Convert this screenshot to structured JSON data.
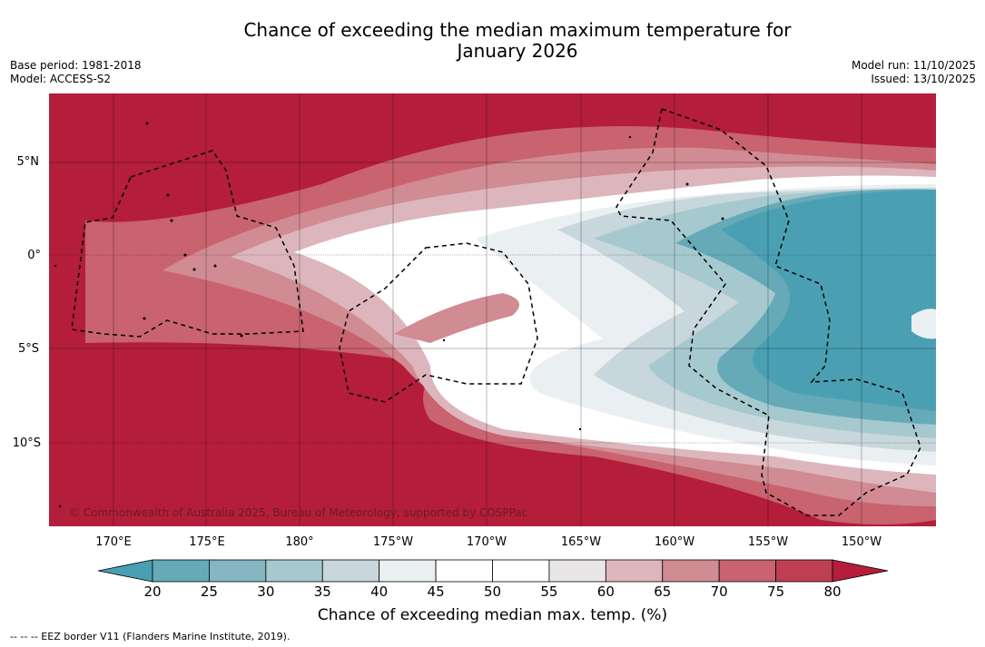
{
  "title_line1": "Chance of exceeding the median maximum temperature for",
  "title_line2": "January 2026",
  "base_period": "Base period: 1981-2018",
  "model": "Model: ACCESS-S2",
  "model_run": "Model run: 11/10/2025",
  "issued": "Issued: 13/10/2025",
  "copyright": "© Commonwealth of Australia 2025, Bureau of Meteorology, supported by COSPPac",
  "lat_labels": [
    "5°N",
    "0°",
    "5°S",
    "10°S"
  ],
  "lon_labels": [
    "170°E",
    "175°E",
    "180°",
    "175°W",
    "170°W",
    "165°W",
    "160°W",
    "155°W",
    "150°W"
  ],
  "colorbar_ticks": [
    "20",
    "25",
    "30",
    "35",
    "40",
    "45",
    "50",
    "55",
    "60",
    "65",
    "70",
    "75",
    "80"
  ],
  "colorbar_label": "Chance of exceeding median max. temp. (%)",
  "colorbar_colors": [
    "#66aab8",
    "#85b6c2",
    "#a6c9cf",
    "#c8d7dc",
    "#eaeff1",
    "#ffffff",
    "#ffffff",
    "#e9e6e8",
    "#ddb6bd",
    "#d18b93",
    "#c8636f",
    "#bd3f51"
  ],
  "colorbar_low_color": "#4aa0b2",
  "colorbar_high_color": "#b41e3a",
  "eez_note": "--  --  -- EEZ border V11 (Flanders Marine Institute, 2019)."
}
